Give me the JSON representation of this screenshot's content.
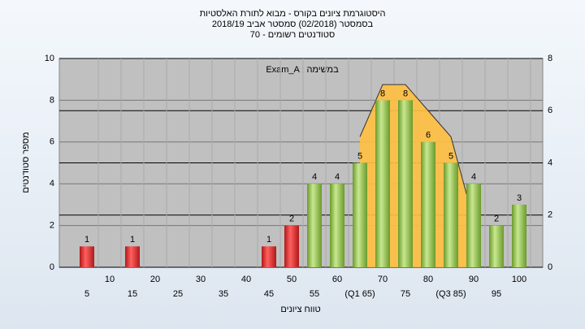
{
  "chart_data": {
    "type": "bar",
    "title": [
      "היסטוגרמת ציונים בקורס - מבוא לתורת האלסטיות",
      "בסמסטר  (02/2018)  סמסטר אביב 2018/19",
      "סטודנטים רשומים - 70"
    ],
    "annotation": "Exam_A : במשימה",
    "x_label": "טווח ציונים",
    "y_label": "מספר סטודנטים",
    "categories": [
      "5",
      "10",
      "15",
      "20",
      "25",
      "30",
      "35",
      "40",
      "45",
      "50",
      "55",
      "60",
      "(Q1 65)",
      "70",
      "75",
      "80",
      "(Q3 85)",
      "90",
      "95",
      "100"
    ],
    "series": [
      {
        "color": "#e03030",
        "values": [
          1,
          0,
          1,
          0,
          0,
          0,
          0,
          0,
          1,
          2,
          null,
          null,
          null,
          null,
          null,
          null,
          null,
          null,
          null,
          null
        ]
      },
      {
        "color": "#9ccc50",
        "values": [
          null,
          null,
          null,
          null,
          null,
          null,
          null,
          null,
          null,
          null,
          4,
          4,
          5,
          8,
          8,
          6,
          5,
          4,
          2,
          3
        ]
      },
      {
        "type": "area",
        "axis": "y2",
        "color": "#ffc040",
        "values": [
          null,
          null,
          null,
          null,
          null,
          null,
          null,
          null,
          null,
          null,
          null,
          null,
          5,
          7,
          7,
          6,
          5,
          1.8,
          null,
          null
        ]
      }
    ],
    "ylim": [
      0,
      10
    ],
    "yticks": [
      0,
      2,
      4,
      6,
      8,
      10
    ],
    "y2lim": [
      0,
      8
    ],
    "y2ticks": [
      0,
      2,
      4,
      6,
      8
    ],
    "grid": true
  }
}
